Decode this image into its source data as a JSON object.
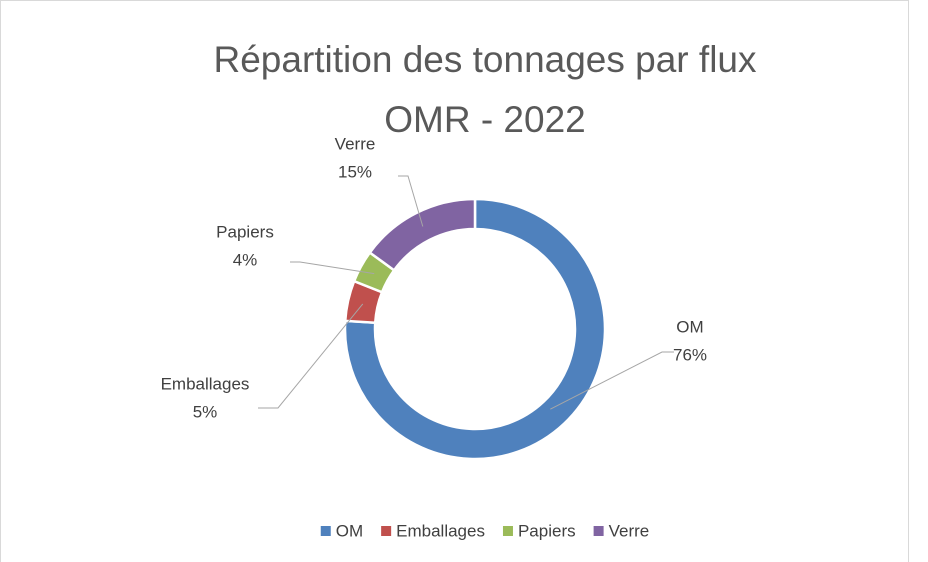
{
  "chart_data": {
    "type": "donut",
    "title": [
      "Répartition des tonnages par flux",
      "OMR - 2022"
    ],
    "categories": [
      "OM",
      "Emballages",
      "Papiers",
      "Verre"
    ],
    "values": [
      76,
      5,
      4,
      15
    ],
    "value_labels": [
      "76%",
      "5%",
      "4%",
      "15%"
    ],
    "colors": [
      "#4f81bd",
      "#c0504d",
      "#9bbb59",
      "#8064a2"
    ],
    "legend": "bottom"
  }
}
